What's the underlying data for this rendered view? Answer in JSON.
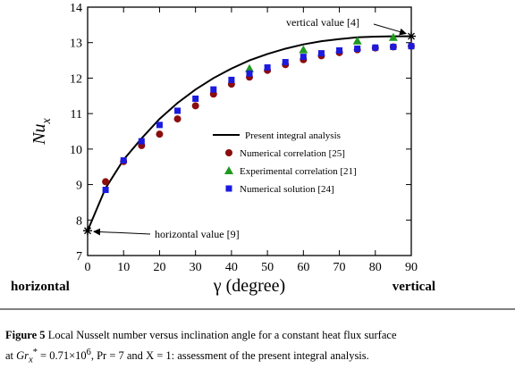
{
  "chart_data": {
    "type": "line+scatter",
    "xlabel": "γ (degree)",
    "ylabel": "Nu",
    "ylabel_sub": "x",
    "xlim": [
      0,
      90
    ],
    "ylim": [
      7,
      14
    ],
    "xticks": [
      0,
      10,
      20,
      30,
      40,
      50,
      60,
      70,
      80,
      90
    ],
    "yticks": [
      7,
      8,
      9,
      10,
      11,
      12,
      13,
      14
    ],
    "grid": false,
    "legend_position": "lower-right",
    "series": [
      {
        "name": "Present integral analysis",
        "kind": "line",
        "color": "#000000",
        "x": [
          0,
          5,
          10,
          15,
          20,
          25,
          30,
          35,
          40,
          45,
          50,
          55,
          60,
          65,
          70,
          75,
          80,
          85,
          90
        ],
        "y": [
          7.7,
          8.9,
          9.7,
          10.3,
          10.85,
          11.3,
          11.68,
          12.0,
          12.27,
          12.5,
          12.68,
          12.83,
          12.95,
          13.04,
          13.1,
          13.15,
          13.17,
          13.18,
          13.18
        ]
      },
      {
        "name": "Numerical correlation [25]",
        "kind": "scatter",
        "marker": "circle",
        "color": "#8b0d0d",
        "x": [
          5,
          10,
          15,
          20,
          25,
          30,
          35,
          40,
          45,
          50,
          55,
          60,
          65,
          70,
          75,
          80,
          85,
          90
        ],
        "y": [
          9.08,
          9.65,
          10.1,
          10.42,
          10.85,
          11.22,
          11.55,
          11.83,
          12.03,
          12.22,
          12.38,
          12.52,
          12.63,
          12.72,
          12.8,
          12.85,
          12.88,
          12.9
        ]
      },
      {
        "name": "Experimental correlation [21]",
        "kind": "scatter",
        "marker": "triangle",
        "color": "#1f9a1f",
        "x": [
          45,
          60,
          75,
          85
        ],
        "y": [
          12.27,
          12.8,
          13.05,
          13.15
        ]
      },
      {
        "name": "Numerical solution [24]",
        "kind": "scatter",
        "marker": "square",
        "color": "#1a1ae0",
        "x": [
          5,
          10,
          15,
          20,
          25,
          30,
          35,
          40,
          45,
          50,
          55,
          60,
          65,
          70,
          75,
          80,
          85,
          90
        ],
        "y": [
          8.85,
          9.68,
          10.22,
          10.68,
          11.08,
          11.42,
          11.68,
          11.95,
          12.13,
          12.3,
          12.45,
          12.6,
          12.7,
          12.78,
          12.83,
          12.86,
          12.88,
          12.9
        ]
      }
    ],
    "annotations": [
      {
        "text": "vertical value [4]",
        "x": 90,
        "y": 13.18
      },
      {
        "text": "horizontal value [9]",
        "x": 0,
        "y": 7.7
      }
    ],
    "side_labels": {
      "left": "horizontal",
      "right": "vertical"
    }
  },
  "caption": {
    "label": "Figure 5",
    "line1": " Local Nusselt number versus inclination angle for a constant heat flux surface",
    "line2_prefix": "at ",
    "gr": "Gr",
    "gr_sub": "x",
    "gr_sup": "*",
    "gr_eq": " = 0.71×10",
    "gr_exp": "6",
    "pr": ", Pr = 7",
    "and": " and ",
    "xval": "X = 1",
    "suffix": ": assessment of the present integral analysis."
  }
}
